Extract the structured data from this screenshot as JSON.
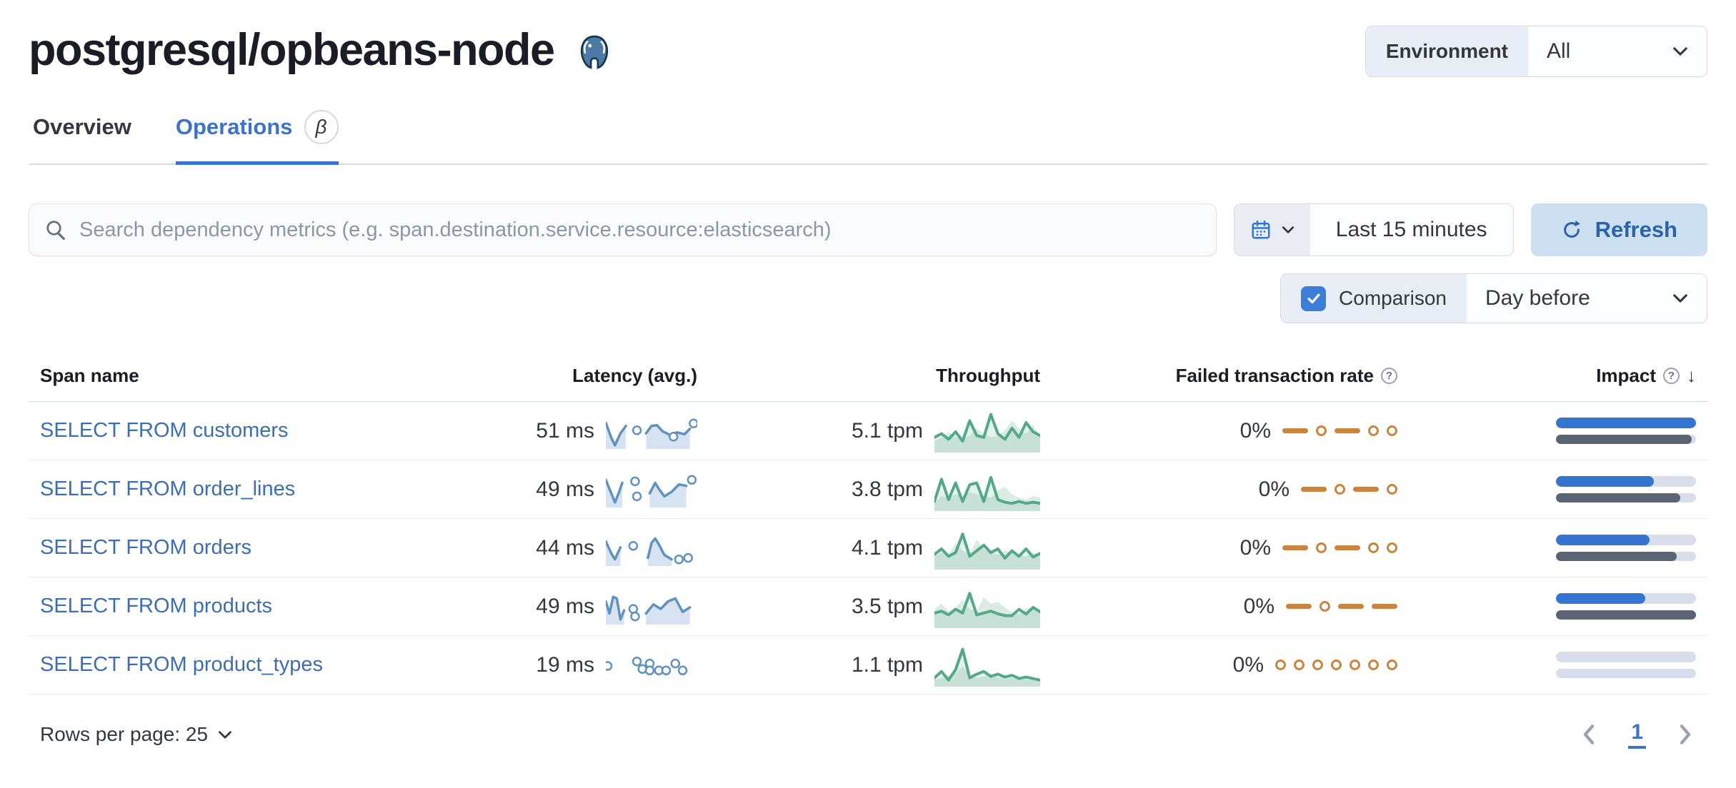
{
  "colors": {
    "link": "#3c6eb4",
    "tab_active": "#3b73c9",
    "refresh_bg": "#cce0f2",
    "refresh_text": "#2b63a9",
    "checkbox": "#3b7dd8",
    "latency": "#6092c0",
    "latency_fill": "#d8e3f2",
    "throughput": "#54a98c",
    "throughput_fill": "#d5e9df",
    "failed": "#cb8440",
    "impact_current": "#3575d0",
    "impact_previous": "#5a6472"
  },
  "page": {
    "title": "postgresql/opbeans-node",
    "logo": "postgresql-elephant-icon"
  },
  "environment": {
    "label": "Environment",
    "value": "All"
  },
  "tabs": [
    {
      "label": "Overview",
      "active": false
    },
    {
      "label": "Operations",
      "active": true,
      "badge": "β"
    }
  ],
  "search": {
    "placeholder": "Search dependency metrics (e.g. span.destination.service.resource:elasticsearch)"
  },
  "time": {
    "range": "Last 15 minutes",
    "refresh_label": "Refresh"
  },
  "comparison": {
    "label": "Comparison",
    "checked": true,
    "value": "Day before"
  },
  "icons": {
    "help": "?",
    "sort_desc": "↓"
  },
  "table": {
    "columns": [
      "Span name",
      "Latency (avg.)",
      "Throughput",
      "Failed transaction rate",
      "Impact"
    ],
    "rows": [
      {
        "span_name": "SELECT FROM customers",
        "latency": "51 ms",
        "throughput": "5.1 tpm",
        "failed_rate": "0%",
        "impact_current": 100,
        "impact_previous": 97
      },
      {
        "span_name": "SELECT FROM order_lines",
        "latency": "49 ms",
        "throughput": "3.8 tpm",
        "failed_rate": "0%",
        "impact_current": 70,
        "impact_previous": 89
      },
      {
        "span_name": "SELECT FROM orders",
        "latency": "44 ms",
        "throughput": "4.1 tpm",
        "failed_rate": "0%",
        "impact_current": 67,
        "impact_previous": 86
      },
      {
        "span_name": "SELECT FROM products",
        "latency": "49 ms",
        "throughput": "3.5 tpm",
        "failed_rate": "0%",
        "impact_current": 64,
        "impact_previous": 100
      },
      {
        "span_name": "SELECT FROM product_types",
        "latency": "19 ms",
        "throughput": "1.1 tpm",
        "failed_rate": "0%",
        "impact_current": 0,
        "impact_previous": 0
      }
    ]
  },
  "pagination": {
    "rows_per_page": "Rows per page: 25",
    "page": "1"
  },
  "chart_data": {
    "note": "sparkline series; values 0-100 are normalized heights (100 = tallest)",
    "latency_sparklines": [
      {
        "segments": [
          [
            [
              0,
              80
            ],
            [
              6,
              30
            ],
            [
              10,
              5
            ],
            [
              16,
              45
            ],
            [
              22,
              70
            ]
          ],
          [
            [
              44,
              45
            ],
            [
              50,
              70
            ],
            [
              56,
              72
            ],
            [
              62,
              52
            ],
            [
              70,
              40
            ],
            [
              78,
              48
            ],
            [
              86,
              42
            ],
            [
              92,
              60
            ]
          ]
        ],
        "dots": [
          [
            34,
            55
          ],
          [
            74,
            34
          ],
          [
            96,
            78
          ]
        ]
      },
      {
        "segments": [
          [
            [
              0,
              85
            ],
            [
              6,
              40
            ],
            [
              10,
              10
            ],
            [
              14,
              40
            ],
            [
              18,
              75
            ]
          ],
          [
            [
              48,
              40
            ],
            [
              54,
              75
            ],
            [
              58,
              55
            ],
            [
              64,
              30
            ],
            [
              72,
              45
            ],
            [
              80,
              70
            ],
            [
              88,
              65
            ]
          ]
        ],
        "dots": [
          [
            32,
            80
          ],
          [
            34,
            30
          ],
          [
            94,
            85
          ]
        ]
      },
      {
        "segments": [
          [
            [
              0,
              75
            ],
            [
              6,
              35
            ],
            [
              10,
              15
            ],
            [
              16,
              55
            ]
          ],
          [
            [
              46,
              20
            ],
            [
              50,
              70
            ],
            [
              54,
              85
            ],
            [
              58,
              65
            ],
            [
              64,
              30
            ],
            [
              72,
              15
            ]
          ]
        ],
        "dots": [
          [
            30,
            60
          ],
          [
            80,
            15
          ],
          [
            90,
            20
          ]
        ]
      },
      {
        "segments": [
          [
            [
              0,
              70
            ],
            [
              4,
              30
            ],
            [
              8,
              85
            ],
            [
              12,
              80
            ],
            [
              16,
              10
            ],
            [
              20,
              40
            ]
          ],
          [
            [
              44,
              30
            ],
            [
              52,
              60
            ],
            [
              60,
              45
            ],
            [
              68,
              70
            ],
            [
              76,
              80
            ],
            [
              84,
              35
            ],
            [
              92,
              50
            ]
          ]
        ],
        "dots": [
          [
            30,
            45
          ],
          [
            32,
            20
          ]
        ]
      },
      {
        "segments": [],
        "dots": [
          [
            2,
            50
          ],
          [
            34,
            65
          ],
          [
            40,
            40
          ],
          [
            48,
            58
          ],
          [
            48,
            35
          ],
          [
            58,
            35
          ],
          [
            66,
            35
          ],
          [
            76,
            58
          ],
          [
            84,
            35
          ]
        ]
      }
    ],
    "throughput_sparklines": [
      {
        "main": [
          35,
          45,
          30,
          50,
          25,
          80,
          40,
          35,
          97,
          45,
          30,
          60,
          35,
          75,
          50,
          40
        ],
        "comparison": [
          25,
          35,
          50,
          35,
          30,
          40,
          60,
          45,
          35,
          40,
          55,
          80,
          60,
          45,
          70,
          35
        ]
      },
      {
        "main": [
          20,
          80,
          25,
          70,
          20,
          65,
          70,
          20,
          85,
          25,
          18,
          15,
          20,
          15,
          18,
          15
        ],
        "comparison": [
          15,
          35,
          30,
          40,
          35,
          45,
          40,
          35,
          30,
          50,
          60,
          40,
          30,
          25,
          35,
          30
        ]
      },
      {
        "main": [
          35,
          50,
          30,
          40,
          90,
          30,
          45,
          60,
          40,
          50,
          25,
          45,
          30,
          50,
          28,
          38
        ],
        "comparison": [
          30,
          40,
          35,
          65,
          45,
          35,
          75,
          50,
          40,
          35,
          45,
          40,
          35,
          30,
          40,
          35
        ]
      },
      {
        "main": [
          35,
          40,
          30,
          45,
          35,
          88,
          30,
          35,
          40,
          33,
          28,
          28,
          45,
          32,
          50,
          38
        ],
        "comparison": [
          45,
          60,
          40,
          50,
          70,
          45,
          40,
          78,
          60,
          65,
          50,
          38,
          32,
          48,
          48,
          38
        ]
      },
      {
        "main": [
          18,
          35,
          12,
          40,
          95,
          18,
          28,
          35,
          22,
          28,
          20,
          25,
          16,
          20,
          16,
          12
        ],
        "comparison": [
          12,
          18,
          24,
          30,
          48,
          24,
          18,
          22,
          26,
          18,
          14,
          18,
          12,
          14,
          12,
          8
        ]
      }
    ],
    "failed_rate_sparklines": [
      [
        "dash",
        "dot",
        "dash",
        "dot",
        "dot"
      ],
      [
        "dash",
        "dot",
        "dash",
        "dot"
      ],
      [
        "dash",
        "dot",
        "dash",
        "dot",
        "dot"
      ],
      [
        "dash",
        "dot",
        "dash",
        "dash"
      ],
      [
        "dot",
        "dot",
        "dot",
        "dot",
        "dot",
        "dot",
        "dot"
      ]
    ],
    "impact_bars": {
      "type": "bar",
      "series": [
        {
          "name": "current",
          "values": [
            100,
            70,
            67,
            64,
            0
          ]
        },
        {
          "name": "day_before",
          "values": [
            97,
            89,
            86,
            100,
            0
          ]
        }
      ]
    }
  }
}
